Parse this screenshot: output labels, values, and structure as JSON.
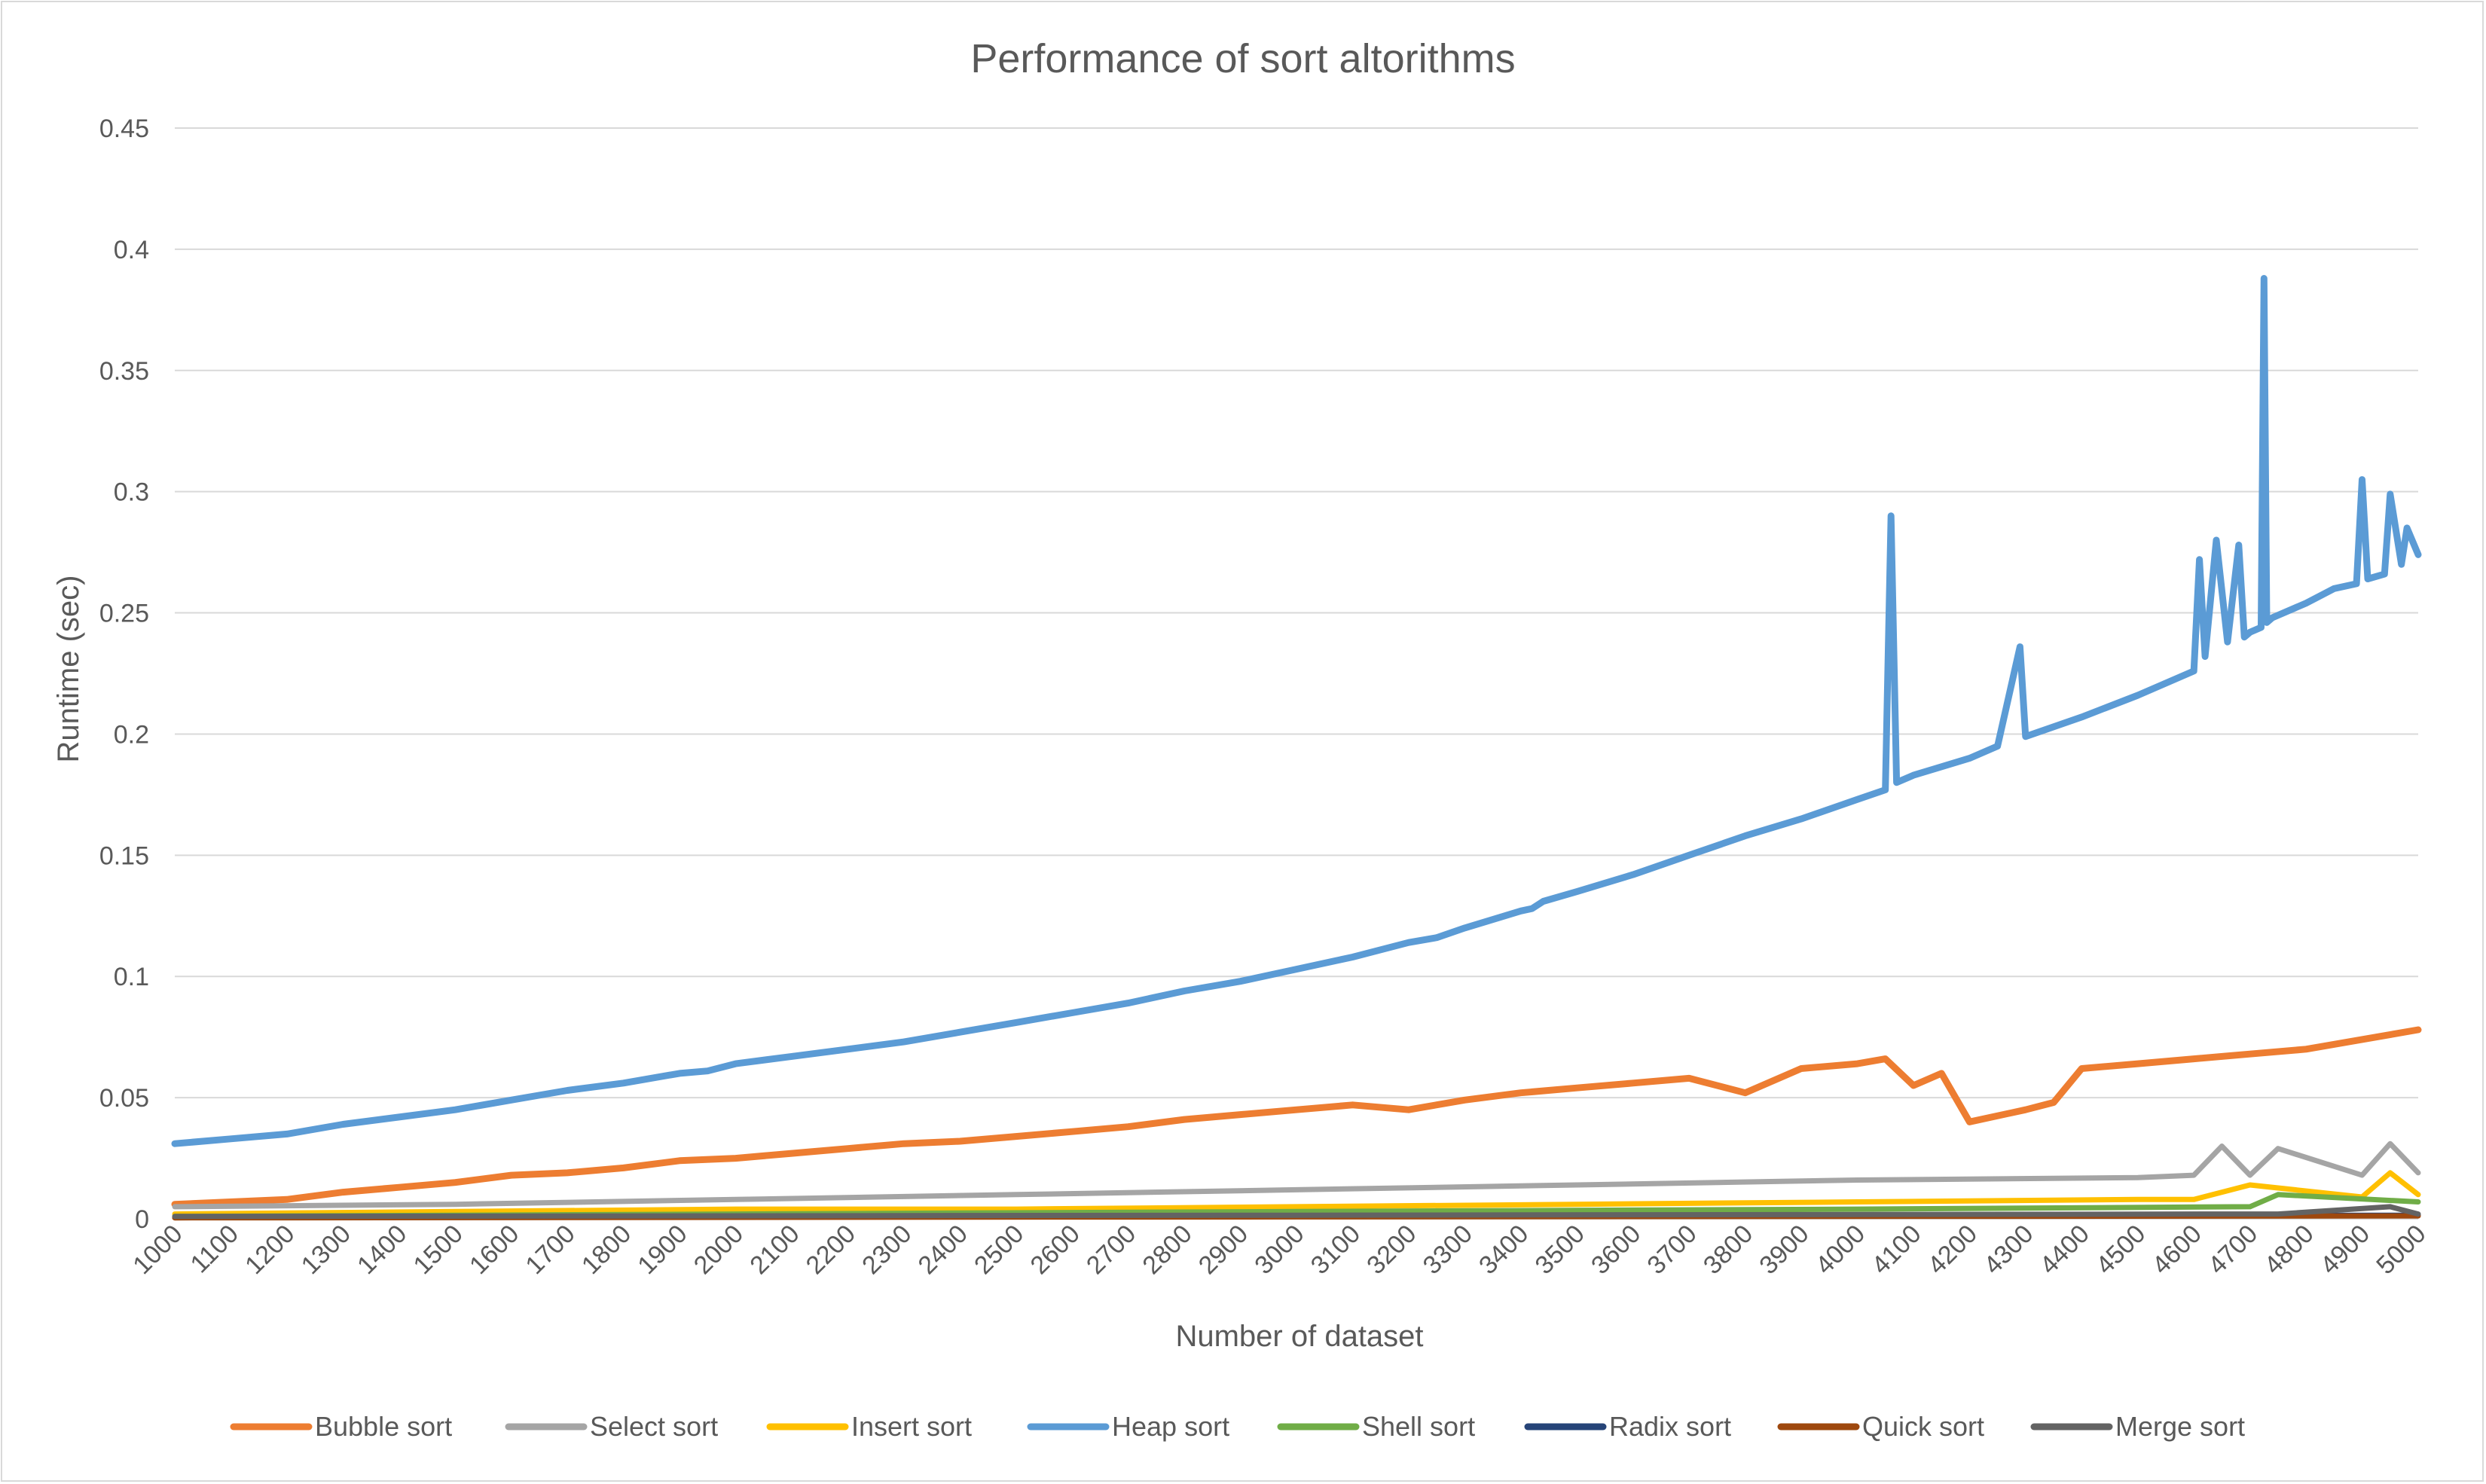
{
  "chart_data": {
    "type": "line",
    "title": "Performance of sort altorithms",
    "xlabel": "Number of dataset",
    "ylabel": "Runtime (sec)",
    "xlim": [
      1000,
      5000
    ],
    "ylim": [
      0,
      0.45
    ],
    "y_ticks": [
      "0",
      "0.05",
      "0.1",
      "0.15",
      "0.2",
      "0.25",
      "0.3",
      "0.35",
      "0.4",
      "0.45"
    ],
    "x_ticks": [
      "1000",
      "1100",
      "1200",
      "1300",
      "1400",
      "1500",
      "1600",
      "1700",
      "1800",
      "1900",
      "2000",
      "2100",
      "2200",
      "2300",
      "2400",
      "2500",
      "2600",
      "2700",
      "2800",
      "2900",
      "3000",
      "3100",
      "3200",
      "3300",
      "3400",
      "3500",
      "3600",
      "3700",
      "3800",
      "3900",
      "4000",
      "4100",
      "4200",
      "4300",
      "4400",
      "4500",
      "4600",
      "4700",
      "4800",
      "4900",
      "5000"
    ],
    "grid": true,
    "legend_position": "bottom",
    "series": [
      {
        "name": "Bubble sort",
        "color": "#ED7D31",
        "x": [
          1000,
          1200,
          1300,
          1400,
          1500,
          1600,
          1700,
          1800,
          1900,
          2000,
          2100,
          2200,
          2300,
          2400,
          2500,
          2600,
          2700,
          2800,
          2900,
          3000,
          3100,
          3200,
          3300,
          3400,
          3500,
          3600,
          3700,
          3800,
          3900,
          4000,
          4050,
          4100,
          4150,
          4200,
          4300,
          4350,
          4400,
          4500,
          4600,
          4700,
          4800,
          4900,
          5000
        ],
        "values": [
          0.006,
          0.008,
          0.011,
          0.013,
          0.015,
          0.018,
          0.019,
          0.021,
          0.024,
          0.025,
          0.027,
          0.029,
          0.031,
          0.032,
          0.034,
          0.036,
          0.038,
          0.041,
          0.043,
          0.045,
          0.047,
          0.045,
          0.049,
          0.052,
          0.054,
          0.056,
          0.058,
          0.052,
          0.062,
          0.064,
          0.066,
          0.055,
          0.06,
          0.04,
          0.045,
          0.048,
          0.062,
          0.064,
          0.066,
          0.068,
          0.07,
          0.074,
          0.078
        ]
      },
      {
        "name": "Select sort",
        "color": "#A5A5A5",
        "x": [
          1000,
          1500,
          2000,
          2500,
          3000,
          3500,
          4000,
          4500,
          4600,
          4650,
          4700,
          4750,
          4900,
          4950,
          5000
        ],
        "values": [
          0.005,
          0.006,
          0.008,
          0.01,
          0.012,
          0.014,
          0.016,
          0.017,
          0.018,
          0.03,
          0.018,
          0.029,
          0.018,
          0.031,
          0.019
        ]
      },
      {
        "name": "Insert sort",
        "color": "#FFC000",
        "x": [
          1000,
          1500,
          2000,
          2500,
          3000,
          3500,
          4000,
          4500,
          4600,
          4700,
          4900,
          4950,
          5000
        ],
        "values": [
          0.002,
          0.003,
          0.004,
          0.004,
          0.005,
          0.006,
          0.007,
          0.008,
          0.008,
          0.014,
          0.009,
          0.019,
          0.01
        ]
      },
      {
        "name": "Heap sort",
        "color": "#5B9BD5",
        "x": [
          1000,
          1100,
          1200,
          1300,
          1400,
          1500,
          1600,
          1700,
          1800,
          1900,
          1950,
          2000,
          2100,
          2200,
          2300,
          2400,
          2500,
          2600,
          2700,
          2800,
          2900,
          3000,
          3100,
          3200,
          3250,
          3300,
          3400,
          3420,
          3440,
          3500,
          3600,
          3700,
          3800,
          3900,
          4000,
          4050,
          4060,
          4070,
          4100,
          4200,
          4250,
          4290,
          4300,
          4400,
          4500,
          4600,
          4610,
          4620,
          4640,
          4660,
          4680,
          4690,
          4700,
          4720,
          4725,
          4730,
          4740,
          4800,
          4850,
          4890,
          4900,
          4910,
          4940,
          4950,
          4970,
          4980,
          5000
        ],
        "values": [
          0.031,
          0.033,
          0.035,
          0.039,
          0.042,
          0.045,
          0.049,
          0.053,
          0.056,
          0.06,
          0.061,
          0.064,
          0.067,
          0.07,
          0.073,
          0.077,
          0.081,
          0.085,
          0.089,
          0.094,
          0.098,
          0.103,
          0.108,
          0.114,
          0.116,
          0.12,
          0.127,
          0.128,
          0.131,
          0.135,
          0.142,
          0.15,
          0.158,
          0.165,
          0.173,
          0.177,
          0.29,
          0.18,
          0.183,
          0.19,
          0.195,
          0.236,
          0.199,
          0.207,
          0.216,
          0.226,
          0.272,
          0.232,
          0.28,
          0.238,
          0.278,
          0.24,
          0.242,
          0.244,
          0.388,
          0.246,
          0.248,
          0.254,
          0.26,
          0.262,
          0.305,
          0.264,
          0.266,
          0.299,
          0.27,
          0.285,
          0.274
        ]
      },
      {
        "name": "Shell sort",
        "color": "#70AD47",
        "x": [
          1000,
          2000,
          3000,
          4000,
          4700,
          4750,
          5000
        ],
        "values": [
          0.001,
          0.002,
          0.003,
          0.004,
          0.005,
          0.01,
          0.007
        ]
      },
      {
        "name": "Radix sort",
        "color": "#264478",
        "x": [
          1000,
          3000,
          5000
        ],
        "values": [
          0.0005,
          0.001,
          0.0015
        ]
      },
      {
        "name": "Quick sort",
        "color": "#9E480E",
        "x": [
          1000,
          3000,
          5000
        ],
        "values": [
          0.0004,
          0.0008,
          0.0012
        ]
      },
      {
        "name": "Merge sort",
        "color": "#636363",
        "x": [
          1000,
          3000,
          4700,
          4750,
          4950,
          5000
        ],
        "values": [
          0.001,
          0.0015,
          0.002,
          0.002,
          0.005,
          0.002
        ]
      }
    ]
  }
}
